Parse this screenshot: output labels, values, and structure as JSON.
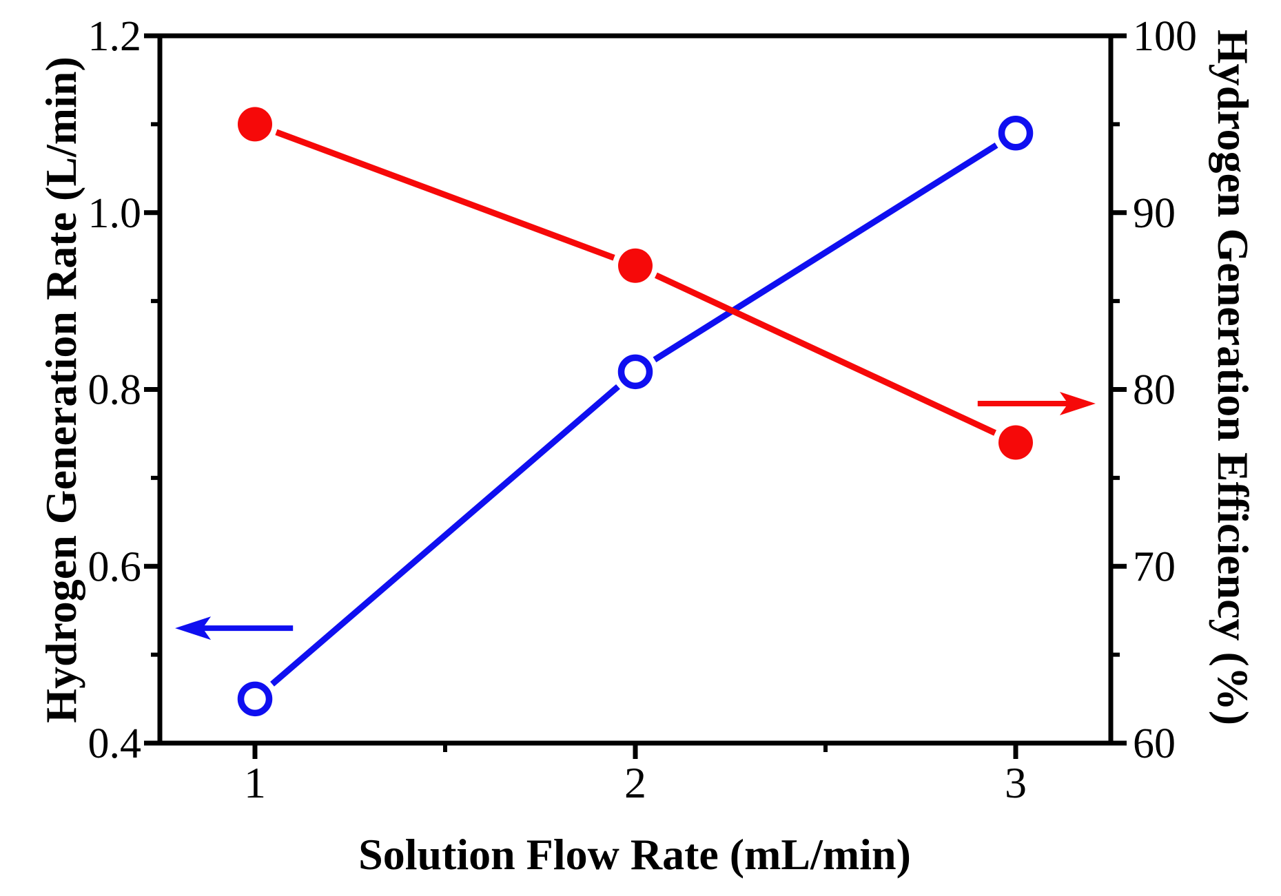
{
  "chart_data": {
    "type": "line",
    "title": "",
    "xlabel": "Solution Flow Rate (mL/min)",
    "ylabel_left": "Hydrogen Generation Rate (L/min)",
    "ylabel_right": "Hydrogen Generation Efficiency (%)",
    "xlim": [
      0.75,
      3.25
    ],
    "ylim_left": [
      0.4,
      1.2
    ],
    "ylim_right": [
      60,
      100
    ],
    "grid": false,
    "legend": "none",
    "x": [
      1,
      2,
      3
    ],
    "series": [
      {
        "name": "Hydrogen Generation Rate",
        "axis": "left",
        "color": "#0f0ff0",
        "marker": "open-circle",
        "values": [
          0.45,
          0.82,
          1.09
        ]
      },
      {
        "name": "Hydrogen Generation Efficiency",
        "axis": "right",
        "color": "#f60909",
        "marker": "filled-circle",
        "values": [
          95,
          87,
          77
        ]
      }
    ],
    "xticks": {
      "major": [
        1,
        2,
        3
      ],
      "labels": [
        "1",
        "2",
        "3"
      ],
      "minor": [
        1.5,
        2.5
      ]
    },
    "yticks_left": {
      "major": [
        0.4,
        0.6,
        0.8,
        1.0,
        1.2
      ],
      "labels": [
        "0.4",
        "0.6",
        "0.8",
        "1.0",
        "1.2"
      ],
      "minor": [
        0.5,
        0.7,
        0.9,
        1.1
      ]
    },
    "yticks_right": {
      "major": [
        60,
        70,
        80,
        90,
        100
      ],
      "labels": [
        "60",
        "70",
        "80",
        "90",
        "100"
      ],
      "minor": [
        65,
        75,
        85,
        95
      ]
    },
    "annotations": [
      {
        "type": "arrow",
        "meaning": "blue curve reads left axis",
        "axis": "left",
        "direction": "left",
        "color": "#0f0ff0",
        "x_tail": 1.1,
        "x_tip": 0.79,
        "y": 0.53
      },
      {
        "type": "arrow",
        "meaning": "red curve reads right axis",
        "axis": "right",
        "direction": "right",
        "color": "#f60909",
        "x_tail": 2.9,
        "x_tip": 3.21,
        "y": 79.2
      }
    ]
  },
  "colors": {
    "frame": "#000000",
    "background": "#ffffff",
    "blue_series": "#0f0ff0",
    "red_series": "#f60909"
  }
}
